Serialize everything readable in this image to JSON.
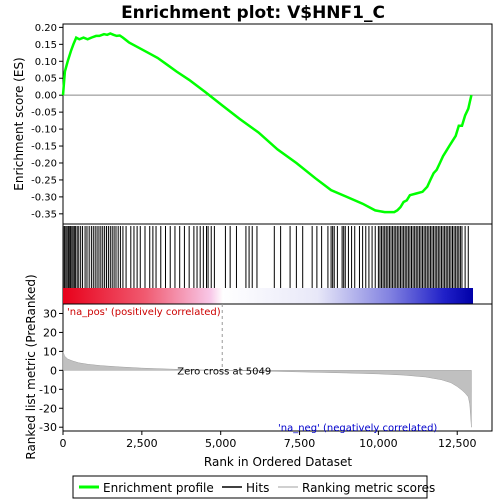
{
  "chart_data": {
    "type": "line",
    "title": "Enrichment plot: V$HNF1_C",
    "n_genes": 13000,
    "zero_cross": 5049,
    "zero_cross_label": "Zero cross at 5049",
    "top_panel": {
      "ylabel": "Enrichment score (ES)",
      "ylim": [
        -0.38,
        0.21
      ],
      "yticks": [
        "0.20",
        "0.15",
        "0.10",
        "0.05",
        "0.00",
        "-0.05",
        "-0.10",
        "-0.15",
        "-0.20",
        "-0.25",
        "-0.30",
        "-0.35"
      ],
      "ytick_values": [
        0.2,
        0.15,
        0.1,
        0.05,
        0.0,
        -0.05,
        -0.1,
        -0.15,
        -0.2,
        -0.25,
        -0.3,
        -0.35
      ],
      "series": [
        {
          "name": "Enrichment profile",
          "color": "#00ff00",
          "x": [
            0,
            60,
            150,
            250,
            330,
            420,
            520,
            650,
            780,
            900,
            1050,
            1150,
            1300,
            1400,
            1500,
            1600,
            1700,
            1800,
            1900,
            2100,
            2400,
            2700,
            3000,
            3300,
            3600,
            4000,
            4500,
            5049,
            5600,
            6200,
            6800,
            7400,
            8000,
            8500,
            9000,
            9500,
            9900,
            10200,
            10500,
            10600,
            10700,
            10800,
            10900,
            11000,
            11200,
            11400,
            11550,
            11650,
            11750,
            11850,
            11950,
            12050,
            12150,
            12250,
            12350,
            12450,
            12550,
            12650,
            12750,
            12850,
            12900,
            12950
          ],
          "y": [
            0.0,
            0.07,
            0.1,
            0.13,
            0.15,
            0.17,
            0.165,
            0.17,
            0.165,
            0.17,
            0.175,
            0.175,
            0.18,
            0.178,
            0.182,
            0.178,
            0.175,
            0.176,
            0.17,
            0.155,
            0.14,
            0.125,
            0.11,
            0.09,
            0.07,
            0.045,
            0.01,
            -0.03,
            -0.07,
            -0.11,
            -0.16,
            -0.2,
            -0.245,
            -0.28,
            -0.3,
            -0.32,
            -0.34,
            -0.345,
            -0.345,
            -0.34,
            -0.33,
            -0.315,
            -0.31,
            -0.295,
            -0.29,
            -0.285,
            -0.27,
            -0.25,
            -0.23,
            -0.22,
            -0.2,
            -0.18,
            -0.165,
            -0.15,
            -0.135,
            -0.12,
            -0.09,
            -0.09,
            -0.06,
            -0.04,
            -0.02,
            0.0
          ]
        }
      ]
    },
    "hits_panel": {
      "hit_positions": [
        10,
        50,
        90,
        130,
        170,
        200,
        240,
        280,
        320,
        360,
        400,
        450,
        500,
        560,
        620,
        700,
        760,
        830,
        900,
        960,
        1020,
        1080,
        1140,
        1200,
        1260,
        1320,
        1380,
        1440,
        1500,
        1560,
        1620,
        1680,
        1750,
        1820,
        1900,
        2000,
        2150,
        2250,
        2350,
        2450,
        2600,
        2750,
        2850,
        2950,
        3100,
        3250,
        3400,
        3550,
        3700,
        3850,
        4000,
        4150,
        4250,
        4350,
        4450,
        4550,
        4600,
        4700,
        4800,
        5150,
        5300,
        5500,
        5800,
        5900,
        6000,
        6150,
        6700,
        6900,
        7200,
        7400,
        7600,
        7900,
        8050,
        8200,
        8400,
        8500,
        8550,
        8600,
        8700,
        8850,
        8900,
        8950,
        9050,
        9150,
        9250,
        9400,
        9500,
        9600,
        9700,
        9800,
        9900,
        10000,
        10050,
        10100,
        10150,
        10200,
        10250,
        10300,
        10350,
        10400,
        10450,
        10500,
        10550,
        10600,
        10650,
        10700,
        10750,
        10800,
        10850,
        10900,
        10950,
        11000,
        11050,
        11100,
        11150,
        11200,
        11250,
        11300,
        11350,
        11400,
        11450,
        11500,
        11550,
        11600,
        11650,
        11700,
        11750,
        11800,
        11850,
        11900,
        11950,
        12000,
        12050,
        12100,
        12150,
        12200,
        12250,
        12300,
        12350,
        12400,
        12450,
        12500,
        12550,
        12600,
        12650,
        12750,
        12850
      ]
    },
    "bottom_panel": {
      "xlabel": "Rank in Ordered Dataset",
      "ylabel": "Ranked list metric (PreRanked)",
      "ylim": [
        -32,
        35
      ],
      "yticks": [
        "30",
        "20",
        "10",
        "0",
        "-10",
        "-20",
        "-30"
      ],
      "ytick_values": [
        30,
        20,
        10,
        0,
        -10,
        -20,
        -30
      ],
      "xticks": [
        "0",
        "2,500",
        "5,000",
        "7,500",
        "10,000",
        "12,500"
      ],
      "xtick_values": [
        0,
        2500,
        5000,
        7500,
        10000,
        12500
      ],
      "metric_x": [
        0,
        50,
        150,
        300,
        500,
        800,
        1200,
        1800,
        2500,
        3500,
        4500,
        5049,
        6000,
        7500,
        9000,
        10000,
        10800,
        11500,
        12000,
        12300,
        12500,
        12650,
        12750,
        12850,
        12900,
        12950
      ],
      "metric_y": [
        10,
        7.5,
        6,
        5,
        4,
        3.2,
        2.5,
        1.8,
        1.2,
        0.6,
        0.2,
        0,
        -0.3,
        -0.8,
        -1.4,
        -1.9,
        -2.5,
        -3.5,
        -5,
        -6.5,
        -8.5,
        -10.5,
        -12,
        -14,
        -18,
        -30
      ],
      "label_pos": "'na_pos' (positively correlated)",
      "label_neg": "'na_neg' (negatively correlated)"
    },
    "legend": {
      "placement": "bottom",
      "items": [
        {
          "label": "Enrichment profile",
          "color": "#00ff00"
        },
        {
          "label": "Hits",
          "color": "#000000"
        },
        {
          "label": "Ranking metric scores",
          "color": "#c0c0c0"
        }
      ]
    },
    "grid": false
  }
}
